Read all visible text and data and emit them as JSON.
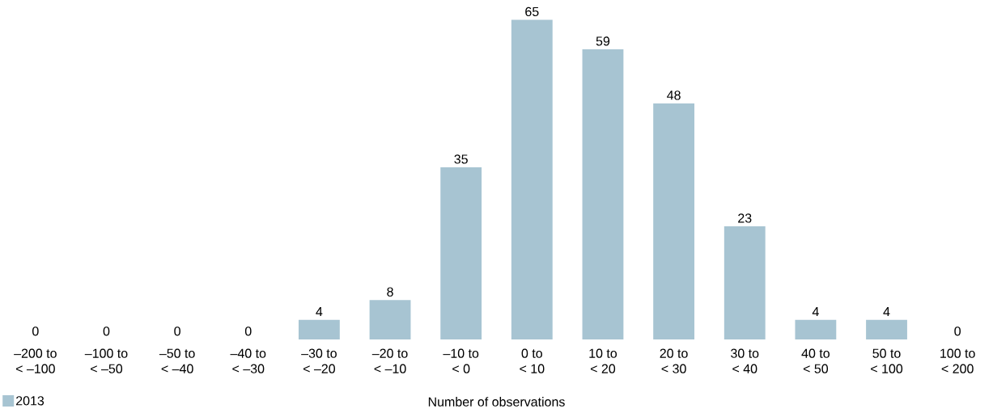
{
  "chart_data": {
    "type": "bar",
    "xlabel": "Number of observations",
    "categories": [
      "–200 to\n< –100",
      "–100 to\n< –50",
      "–50 to\n< –40",
      "–40 to\n< –30",
      "–30 to\n< –20",
      "–20 to\n< –10",
      "–10 to\n< 0",
      "0 to\n< 10",
      "10 to\n< 20",
      "20 to\n< 30",
      "30 to\n< 40",
      "40 to\n< 50",
      "50 to\n< 100",
      "100 to\n< 200"
    ],
    "series": [
      {
        "name": "2013",
        "color": "#a7c4d2",
        "values": [
          0,
          0,
          0,
          0,
          4,
          8,
          35,
          65,
          59,
          48,
          23,
          4,
          4,
          0
        ]
      }
    ],
    "data_labels": true,
    "legend": "bottom left"
  }
}
